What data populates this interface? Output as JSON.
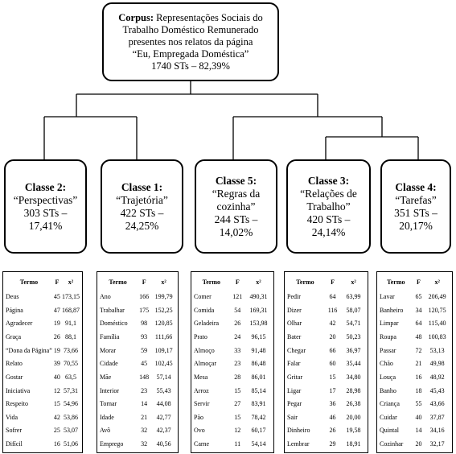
{
  "root": {
    "label": "Corpus:",
    "lines": [
      "Representações Sociais do",
      "Trabalho Doméstico Remunerado",
      "presentes nos relatos da página",
      "“Eu, Empregada Doméstica”",
      "1740 STs – 82,39%"
    ]
  },
  "classes": [
    {
      "title": "Classe 2:",
      "lines": [
        "“Perspectivas”",
        "303 STs –",
        "17,41%"
      ],
      "table": {
        "header": [
          "Termo",
          "F",
          "x²"
        ],
        "rows": [
          [
            "Deus",
            "45",
            "173,15"
          ],
          [
            "Página",
            "47",
            "168,87"
          ],
          [
            "Agradecer",
            "19",
            "91,1"
          ],
          [
            "Graça",
            "26",
            "88,1"
          ],
          [
            "“Dona da Página”",
            "19",
            "73,66"
          ],
          [
            "Relato",
            "39",
            "70,55"
          ],
          [
            "Gostar",
            "40",
            "63,5"
          ],
          [
            "Iniciativa",
            "12",
            "57,31"
          ],
          [
            "Respeito",
            "15",
            "54,96"
          ],
          [
            "Vida",
            "42",
            "53,86"
          ],
          [
            "Sofrer",
            "25",
            "53,07"
          ],
          [
            "Difícil",
            "16",
            "51,06"
          ]
        ]
      }
    },
    {
      "title": "Classe 1:",
      "lines": [
        "“Trajetória”",
        "422 STs –",
        "24,25%"
      ],
      "table": {
        "header": [
          "Termo",
          "F",
          "x²"
        ],
        "rows": [
          [
            "Ano",
            "166",
            "199,79"
          ],
          [
            "Trabalhar",
            "175",
            "152,25"
          ],
          [
            "Doméstico",
            "98",
            "120,85"
          ],
          [
            "Família",
            "93",
            "111,66"
          ],
          [
            "Morar",
            "59",
            "109,17"
          ],
          [
            "Cidade",
            "45",
            "102,45"
          ],
          [
            "Mãe",
            "148",
            "57,14"
          ],
          [
            "Interior",
            "23",
            "55,43"
          ],
          [
            "Tornar",
            "14",
            "44,08"
          ],
          [
            "Idade",
            "21",
            "42,77"
          ],
          [
            "Avô",
            "32",
            "42,37"
          ],
          [
            "Emprego",
            "32",
            "40,56"
          ]
        ]
      }
    },
    {
      "title": "Classe 5:",
      "lines": [
        "“Regras da",
        "cozinha”",
        "244 STs –",
        "14,02%"
      ],
      "table": {
        "header": [
          "Termo",
          "F",
          "x²"
        ],
        "rows": [
          [
            "Comer",
            "121",
            "490,31"
          ],
          [
            "Comida",
            "54",
            "169,31"
          ],
          [
            "Geladeira",
            "26",
            "153,98"
          ],
          [
            "Prato",
            "24",
            "96,15"
          ],
          [
            "Almoço",
            "33",
            "91,48"
          ],
          [
            "Almoçar",
            "23",
            "86,48"
          ],
          [
            "Mesa",
            "28",
            "86,01"
          ],
          [
            "Arroz",
            "15",
            "85,14"
          ],
          [
            "Servir",
            "27",
            "83,91"
          ],
          [
            "Pão",
            "15",
            "78,42"
          ],
          [
            "Ovo",
            "12",
            "60,17"
          ],
          [
            "Carne",
            "11",
            "54,14"
          ]
        ]
      }
    },
    {
      "title": "Classe 3:",
      "lines": [
        "“Relações de",
        "Trabalho”",
        "420 STs –",
        "24,14%"
      ],
      "table": {
        "header": [
          "Termo",
          "F",
          "x²"
        ],
        "rows": [
          [
            "Pedir",
            "64",
            "63,99"
          ],
          [
            "Dizer",
            "116",
            "58,07"
          ],
          [
            "Olhar",
            "42",
            "54,71"
          ],
          [
            "Bater",
            "20",
            "50,23"
          ],
          [
            "Chegar",
            "66",
            "36,97"
          ],
          [
            "Falar",
            "60",
            "35,44"
          ],
          [
            "Gritar",
            "15",
            "34,80"
          ],
          [
            "Ligar",
            "17",
            "28,98"
          ],
          [
            "Pegar",
            "36",
            "26,38"
          ],
          [
            "Sair",
            "46",
            "20,00"
          ],
          [
            "Dinheiro",
            "26",
            "19,58"
          ],
          [
            "Lembrar",
            "29",
            "18,91"
          ]
        ]
      }
    },
    {
      "title": "Classe 4:",
      "lines": [
        "“Tarefas”",
        "351 STs –",
        "20,17%"
      ],
      "table": {
        "header": [
          "Termo",
          "F",
          "x²"
        ],
        "rows": [
          [
            "Lavar",
            "65",
            "206,49"
          ],
          [
            "Banheiro",
            "34",
            "120,75"
          ],
          [
            "Limpar",
            "64",
            "115,40"
          ],
          [
            "Roupa",
            "48",
            "100,83"
          ],
          [
            "Passar",
            "72",
            "53,13"
          ],
          [
            "Chão",
            "21",
            "49,98"
          ],
          [
            "Louça",
            "16",
            "48,92"
          ],
          [
            "Banho",
            "18",
            "45,43"
          ],
          [
            "Criança",
            "55",
            "43,66"
          ],
          [
            "Cuidar",
            "40",
            "37,87"
          ],
          [
            "Quintal",
            "14",
            "34,16"
          ],
          [
            "Cozinhar",
            "20",
            "32,17"
          ]
        ]
      }
    }
  ]
}
